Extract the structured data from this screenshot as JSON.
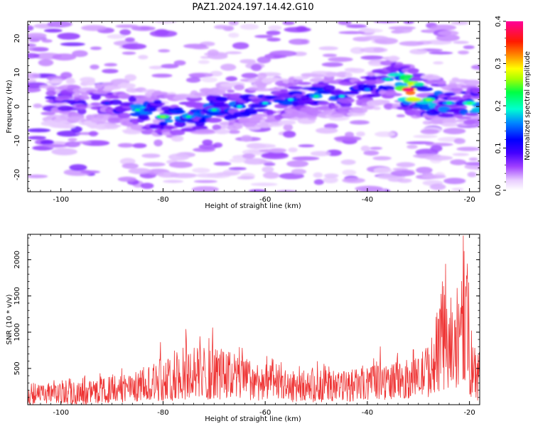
{
  "figure": {
    "title": "PAZ1.2024.197.14.42.G10"
  },
  "chart_data": [
    {
      "type": "heatmap",
      "xlabel": "Height of straight line (km)",
      "ylabel": "Frequency (Hz)",
      "xlim": [
        -106.5,
        -18.0
      ],
      "ylim": [
        -25,
        25
      ],
      "xticks": [
        -100,
        -80,
        -60,
        -40,
        -20
      ],
      "xtick_labels": [
        "-100",
        "-80",
        "-60",
        "-40",
        "-20"
      ],
      "yticks": [
        -20,
        -10,
        0,
        10,
        20
      ],
      "ytick_labels": [
        "-20",
        "-10",
        "0",
        "10",
        "20"
      ],
      "colorbar": {
        "label": "Normalized spectral amplitude",
        "range": [
          0.0,
          0.4
        ],
        "ticks": [
          0.0,
          0.1,
          0.2,
          0.3,
          0.4
        ],
        "tick_labels": [
          "0.0",
          "0.1",
          "0.2",
          "0.3",
          "0.4"
        ],
        "colormap": "gist_rainbow_r-like (white low, violet, blue, cyan, green, yellow, orange, red high)",
        "colors": [
          "#ffffff",
          "#d9b3ff",
          "#8a2be2",
          "#2f00ff",
          "#0000ff",
          "#00a8ff",
          "#00ffcc",
          "#39ff14",
          "#ffff00",
          "#ff8800",
          "#ff0000",
          "#ff0066"
        ]
      },
      "ridge": {
        "description": "Dominant high-amplitude band sloping upward in frequency",
        "points": [
          {
            "x": -91,
            "y": 1.0,
            "amp": 0.12
          },
          {
            "x": -85,
            "y": -1.0,
            "amp": 0.18
          },
          {
            "x": -80,
            "y": -3.0,
            "amp": 0.22
          },
          {
            "x": -75,
            "y": -3.0,
            "amp": 0.18
          },
          {
            "x": -70,
            "y": -1.0,
            "amp": 0.18
          },
          {
            "x": -65,
            "y": 0.0,
            "amp": 0.16
          },
          {
            "x": -60,
            "y": 1.0,
            "amp": 0.16
          },
          {
            "x": -55,
            "y": 2.0,
            "amp": 0.16
          },
          {
            "x": -50,
            "y": 3.0,
            "amp": 0.18
          },
          {
            "x": -45,
            "y": 3.0,
            "amp": 0.16
          },
          {
            "x": -40,
            "y": 5.0,
            "amp": 0.14
          },
          {
            "x": -36,
            "y": 8.0,
            "amp": 0.18
          },
          {
            "x": -32,
            "y": 5.0,
            "amp": 0.38
          },
          {
            "x": -28,
            "y": 2.0,
            "amp": 0.22
          },
          {
            "x": -24,
            "y": 1.0,
            "amp": 0.18
          },
          {
            "x": -20,
            "y": 1.0,
            "amp": 0.2
          }
        ]
      }
    },
    {
      "type": "line",
      "xlabel": "Height of straight line (km)",
      "ylabel": "SNR (10 * v/v)",
      "xlim": [
        -106.5,
        -18.0
      ],
      "ylim": [
        0,
        2350
      ],
      "xticks": [
        -100,
        -80,
        -60,
        -40,
        -20
      ],
      "xtick_labels": [
        "-100",
        "-80",
        "-60",
        "-40",
        "-20"
      ],
      "yticks": [
        500,
        1000,
        1500,
        2000
      ],
      "ytick_labels": [
        "500",
        "1000",
        "1500",
        "2000"
      ],
      "series": [
        {
          "color": "#ee3333",
          "envelope": [
            {
              "x": -106.5,
              "lo": 20,
              "hi": 330
            },
            {
              "x": -95,
              "lo": 20,
              "hi": 380
            },
            {
              "x": -90,
              "lo": 40,
              "hi": 480
            },
            {
              "x": -85,
              "lo": 60,
              "hi": 560
            },
            {
              "x": -80,
              "lo": 80,
              "hi": 720
            },
            {
              "x": -75,
              "lo": 100,
              "hi": 960
            },
            {
              "x": -70,
              "lo": 100,
              "hi": 1000
            },
            {
              "x": -65,
              "lo": 90,
              "hi": 820
            },
            {
              "x": -60,
              "lo": 80,
              "hi": 680
            },
            {
              "x": -55,
              "lo": 60,
              "hi": 560
            },
            {
              "x": -50,
              "lo": 60,
              "hi": 600
            },
            {
              "x": -45,
              "lo": 60,
              "hi": 560
            },
            {
              "x": -40,
              "lo": 80,
              "hi": 620
            },
            {
              "x": -35,
              "lo": 100,
              "hi": 700
            },
            {
              "x": -30,
              "lo": 120,
              "hi": 780
            },
            {
              "x": -27,
              "lo": 150,
              "hi": 1200
            },
            {
              "x": -25,
              "lo": 250,
              "hi": 1800
            },
            {
              "x": -23,
              "lo": 200,
              "hi": 1400
            },
            {
              "x": -21,
              "lo": 350,
              "hi": 2300
            },
            {
              "x": -19.5,
              "lo": 80,
              "hi": 1500
            },
            {
              "x": -18.0,
              "lo": 80,
              "hi": 900
            }
          ],
          "peaks": [
            {
              "x": -95.3,
              "y": 400
            },
            {
              "x": -80.5,
              "y": 860
            },
            {
              "x": -75.5,
              "y": 1040
            },
            {
              "x": -70.3,
              "y": 1060
            },
            {
              "x": -64.5,
              "y": 780
            },
            {
              "x": -58.5,
              "y": 620
            },
            {
              "x": -48.5,
              "y": 560
            },
            {
              "x": -37.5,
              "y": 800
            },
            {
              "x": -31.0,
              "y": 760
            },
            {
              "x": -24.7,
              "y": 1940
            },
            {
              "x": -21.2,
              "y": 2330
            },
            {
              "x": -20.5,
              "y": 1740
            }
          ]
        }
      ]
    }
  ]
}
